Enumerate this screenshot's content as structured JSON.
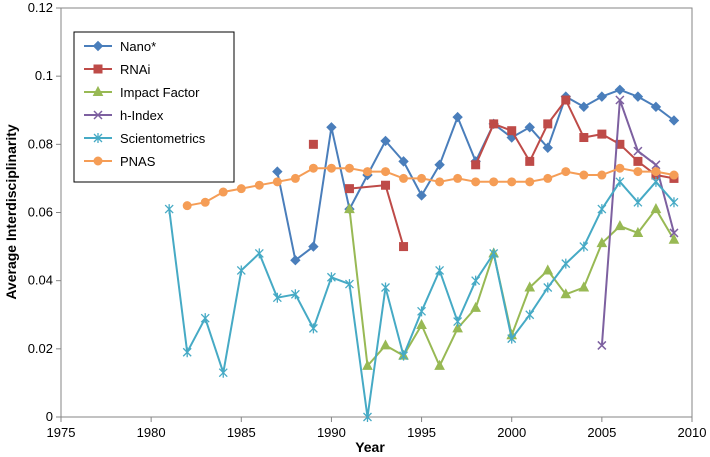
{
  "chart_data": {
    "type": "line",
    "title": "",
    "xlabel": "Year",
    "ylabel": "Average Interdisciplinarity",
    "xlim": [
      1975,
      2010
    ],
    "ylim": [
      0,
      0.12
    ],
    "x_ticks": [
      1975,
      1980,
      1985,
      1990,
      1995,
      2000,
      2005,
      2010
    ],
    "y_ticks": [
      0,
      0.02,
      0.04,
      0.06,
      0.08,
      0.1,
      0.12
    ],
    "y_tick_labels": [
      "0",
      "0.02",
      "0.04",
      "0.06",
      "0.08",
      "0.1",
      "0.12"
    ],
    "grid": false,
    "legend_position": "top-left",
    "series": [
      {
        "name": "Nano*",
        "color": "#4a7ebb",
        "marker": "diamond",
        "x": [
          1987,
          1988,
          1989,
          1990,
          1991,
          1992,
          1993,
          1994,
          1995,
          1996,
          1997,
          1998,
          1999,
          2000,
          2001,
          2002,
          2003,
          2004,
          2005,
          2006,
          2007,
          2008,
          2009
        ],
        "y": [
          0.072,
          0.046,
          0.05,
          0.085,
          0.061,
          0.071,
          0.081,
          0.075,
          0.065,
          0.074,
          0.088,
          0.075,
          0.086,
          0.082,
          0.085,
          0.079,
          0.094,
          0.091,
          0.094,
          0.096,
          0.094,
          0.091,
          0.087
        ]
      },
      {
        "name": "RNAi",
        "color": "#be4b48",
        "marker": "square",
        "x": [
          1989,
          1991,
          1993,
          1994,
          1998,
          1999,
          2000,
          2001,
          2002,
          2003,
          2004,
          2005,
          2006,
          2007,
          2008,
          2009
        ],
        "y": [
          0.08,
          0.067,
          0.068,
          0.05,
          0.074,
          0.086,
          0.084,
          0.075,
          0.086,
          0.093,
          0.082,
          0.083,
          0.08,
          0.075,
          0.071,
          0.07
        ],
        "segments": [
          [
            0
          ],
          [
            1,
            2,
            3
          ],
          [
            4,
            5,
            6,
            7,
            8,
            9,
            10,
            11,
            12,
            13,
            14,
            15
          ]
        ]
      },
      {
        "name": "Impact Factor",
        "color": "#98b954",
        "marker": "triangle",
        "x": [
          1991,
          1992,
          1993,
          1994,
          1995,
          1996,
          1997,
          1998,
          1999,
          2000,
          2001,
          2002,
          2003,
          2004,
          2005,
          2006,
          2007,
          2008,
          2009
        ],
        "y": [
          0.061,
          0.015,
          0.021,
          0.018,
          0.027,
          0.015,
          0.026,
          0.032,
          0.048,
          0.024,
          0.038,
          0.043,
          0.036,
          0.038,
          0.051,
          0.056,
          0.054,
          0.061,
          0.052
        ]
      },
      {
        "name": "h-Index",
        "color": "#7d60a0",
        "marker": "x",
        "x": [
          2005,
          2006,
          2007,
          2008,
          2009
        ],
        "y": [
          0.021,
          0.093,
          0.078,
          0.074,
          0.054
        ]
      },
      {
        "name": "Scientometrics",
        "color": "#46aac5",
        "marker": "star",
        "x": [
          1981,
          1982,
          1983,
          1984,
          1985,
          1986,
          1987,
          1988,
          1989,
          1990,
          1991,
          1992,
          1993,
          1994,
          1995,
          1996,
          1997,
          1998,
          1999,
          2000,
          2001,
          2002,
          2003,
          2004,
          2005,
          2006,
          2007,
          2008,
          2009
        ],
        "y": [
          0.061,
          0.019,
          0.029,
          0.013,
          0.043,
          0.048,
          0.035,
          0.036,
          0.026,
          0.041,
          0.039,
          0.0,
          0.038,
          0.018,
          0.031,
          0.043,
          0.028,
          0.04,
          0.048,
          0.023,
          0.03,
          0.038,
          0.045,
          0.05,
          0.061,
          0.069,
          0.063,
          0.069,
          0.063
        ]
      },
      {
        "name": "PNAS",
        "color": "#f59d56",
        "marker": "circle",
        "x": [
          1982,
          1983,
          1984,
          1985,
          1986,
          1987,
          1988,
          1989,
          1990,
          1991,
          1992,
          1993,
          1994,
          1995,
          1996,
          1997,
          1998,
          1999,
          2000,
          2001,
          2002,
          2003,
          2004,
          2005,
          2006,
          2007,
          2008,
          2009
        ],
        "y": [
          0.062,
          0.063,
          0.066,
          0.067,
          0.068,
          0.069,
          0.07,
          0.073,
          0.073,
          0.073,
          0.072,
          0.072,
          0.07,
          0.07,
          0.069,
          0.07,
          0.069,
          0.069,
          0.069,
          0.069,
          0.07,
          0.072,
          0.071,
          0.071,
          0.073,
          0.072,
          0.072,
          0.071
        ]
      }
    ]
  }
}
